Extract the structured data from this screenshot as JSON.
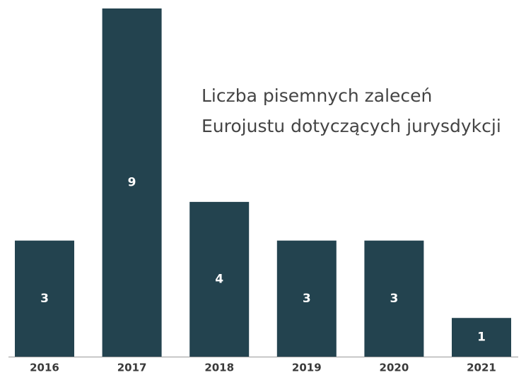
{
  "chart_data": {
    "type": "bar",
    "title": [
      "Liczba pisemnych zaleceń",
      "Eurojustu dotyczących jurysdykcji"
    ],
    "categories": [
      "2016",
      "2017",
      "2018",
      "2019",
      "2020",
      "2021"
    ],
    "values": [
      3,
      9,
      4,
      3,
      3,
      1
    ],
    "color": "#23434f"
  }
}
